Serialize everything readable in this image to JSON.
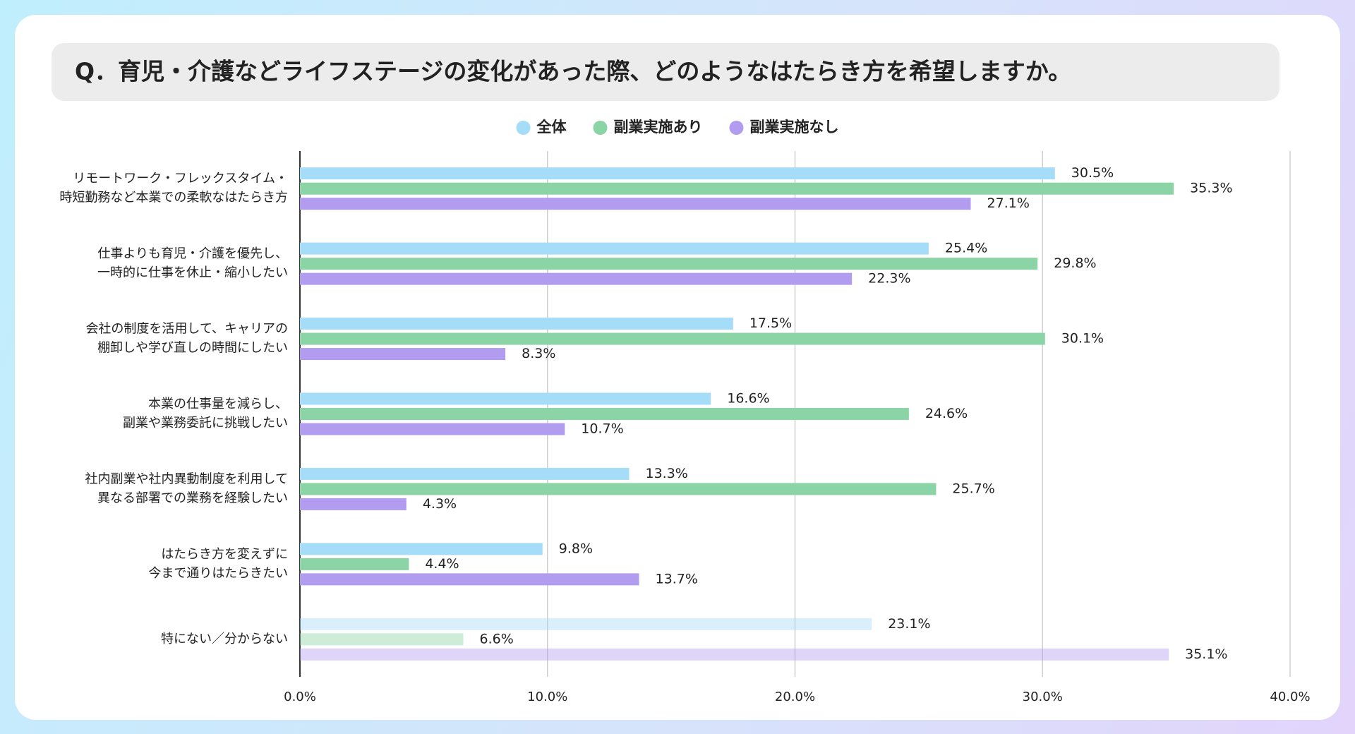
{
  "chart_data": {
    "type": "hbar",
    "title": "Q．育児・介護などライフステージの変化があった際、どのようなはたらき方を希望しますか。",
    "categories": [
      [
        "リモートワーク・フレックスタイム・",
        "時短勤務など本業での柔軟なはたらき方"
      ],
      [
        "仕事よりも育児・介護を優先し、",
        "一時的に仕事を休止・縮小したい"
      ],
      [
        "会社の制度を活用して、キャリアの",
        "棚卸しや学び直しの時間にしたい"
      ],
      [
        "本業の仕事量を減らし、",
        "副業や業務委託に挑戦したい"
      ],
      [
        "社内副業や社内異動制度を利用して",
        "異なる部署での業務を経験したい"
      ],
      [
        "はたらき方を変えずに",
        "今まで通りはたらきたい"
      ],
      [
        "特にない／分からない"
      ]
    ],
    "series": [
      {
        "name": "全体",
        "color": "#a5dcf8",
        "values": [
          30.5,
          25.4,
          17.5,
          16.6,
          13.3,
          9.8,
          23.1
        ],
        "value_labels": [
          "30.5%",
          "25.4%",
          "17.5%",
          "16.6%",
          "13.3%",
          "9.8%",
          "23.1%"
        ]
      },
      {
        "name": "副業実施あり",
        "color": "#8ad4a5",
        "values": [
          35.3,
          29.8,
          30.1,
          24.6,
          25.7,
          4.4,
          6.6
        ],
        "value_labels": [
          "35.3%",
          "29.8%",
          "30.1%",
          "24.6%",
          "25.7%",
          "4.4%",
          "6.6%"
        ]
      },
      {
        "name": "副業実施なし",
        "color": "#b19cf0",
        "values": [
          27.1,
          22.3,
          8.3,
          10.7,
          4.3,
          13.7,
          35.1
        ],
        "value_labels": [
          "27.1%",
          "22.3%",
          "8.3%",
          "10.7%",
          "4.3%",
          "13.7%",
          "35.1%"
        ]
      }
    ],
    "faded_categories": [
      6
    ],
    "xlim": [
      0,
      40
    ],
    "xticks": [
      {
        "value": 0,
        "label": "0.0%"
      },
      {
        "value": 10,
        "label": "10.0%"
      },
      {
        "value": 20,
        "label": "20.0%"
      },
      {
        "value": 30,
        "label": "30.0%"
      },
      {
        "value": 40,
        "label": "40.0%"
      }
    ],
    "grid": true,
    "legend": "top"
  }
}
